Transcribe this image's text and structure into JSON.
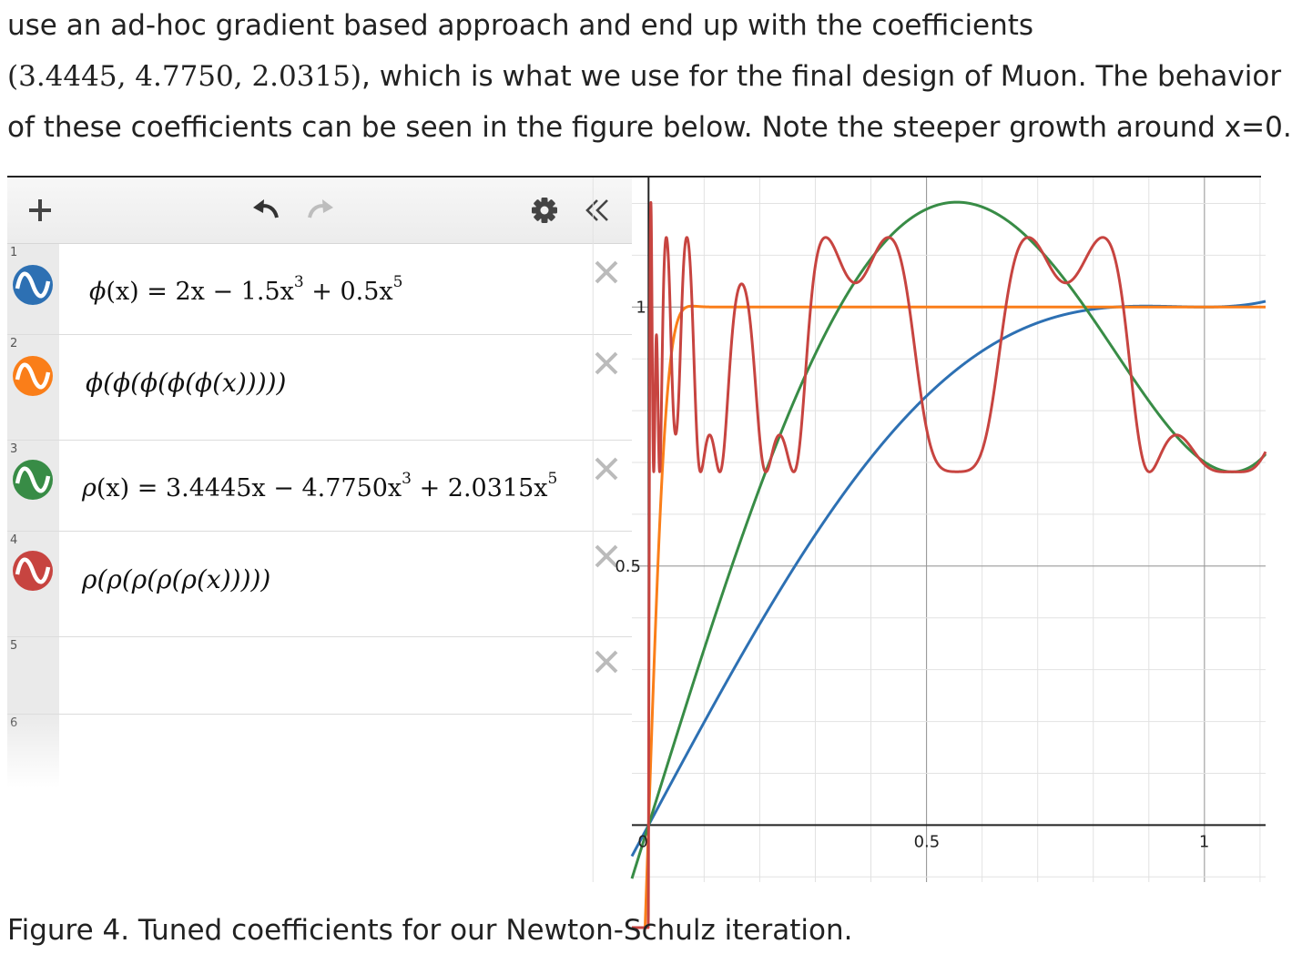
{
  "paragraph": {
    "line1": "use an ad-hoc gradient based approach and end up with the coefficients",
    "line2_math": "(3.4445, 4.7750, 2.0315)",
    "line2_text": ", which is what we use for the final design of Muon. The behavior",
    "line3": "of these coefficients can be seen in the figure below. Note the steeper growth around x=0."
  },
  "toolbar": {
    "add_icon": "plus-icon",
    "undo_icon": "undo-icon",
    "redo_icon": "redo-icon",
    "settings_icon": "gear-icon",
    "collapse_icon": "double-chevron-left-icon"
  },
  "expressions": [
    {
      "index": "1",
      "color": "#2d70b3",
      "lhs": "ϕ",
      "arg": "(x)",
      "rhs_a": " = 2x − 1.5x",
      "exp1": "3",
      "rhs_b": " + 0.5x",
      "exp2": "5"
    },
    {
      "index": "2",
      "color": "#fa7e19",
      "text": "ϕ(ϕ(ϕ(ϕ(ϕ(x)))))"
    },
    {
      "index": "3",
      "color": "#388c46",
      "lhs": "ρ",
      "arg": "(x)",
      "rhs_a": " = 3.4445x − 4.7750x",
      "exp1": "3",
      "rhs_b": " + 2.0315x",
      "exp2": "5"
    },
    {
      "index": "4",
      "color": "#c74440",
      "text": "ρ(ρ(ρ(ρ(ρ(x)))))"
    },
    {
      "index": "5",
      "text": ""
    },
    {
      "index": "6",
      "text": ""
    }
  ],
  "graph": {
    "x_ticks": [
      "0",
      "0.5",
      "1"
    ],
    "y_ticks": [
      "0.5",
      "1"
    ]
  },
  "chart_data": {
    "type": "line",
    "xlim": [
      -0.03,
      1.11
    ],
    "ylim": [
      -0.11,
      1.25
    ],
    "grid": true,
    "series": [
      {
        "name": "ϕ(x) = 2x − 1.5x^3 + 0.5x^5",
        "color": "#2d70b3",
        "coefficients": [
          2,
          -1.5,
          0.5
        ],
        "iterations": 1
      },
      {
        "name": "ϕ(ϕ(ϕ(ϕ(ϕ(x)))))",
        "color": "#fa7e19",
        "coefficients": [
          2,
          -1.5,
          0.5
        ],
        "iterations": 5
      },
      {
        "name": "ρ(x) = 3.4445x − 4.7750x^3 + 2.0315x^5",
        "color": "#388c46",
        "coefficients": [
          3.4445,
          -4.775,
          2.0315
        ],
        "iterations": 1
      },
      {
        "name": "ρ(ρ(ρ(ρ(ρ(x)))))",
        "color": "#c74440",
        "coefficients": [
          3.4445,
          -4.775,
          2.0315
        ],
        "iterations": 5
      }
    ]
  },
  "caption": "Figure 4. Tuned coefficients for our Newton-Schulz iteration."
}
